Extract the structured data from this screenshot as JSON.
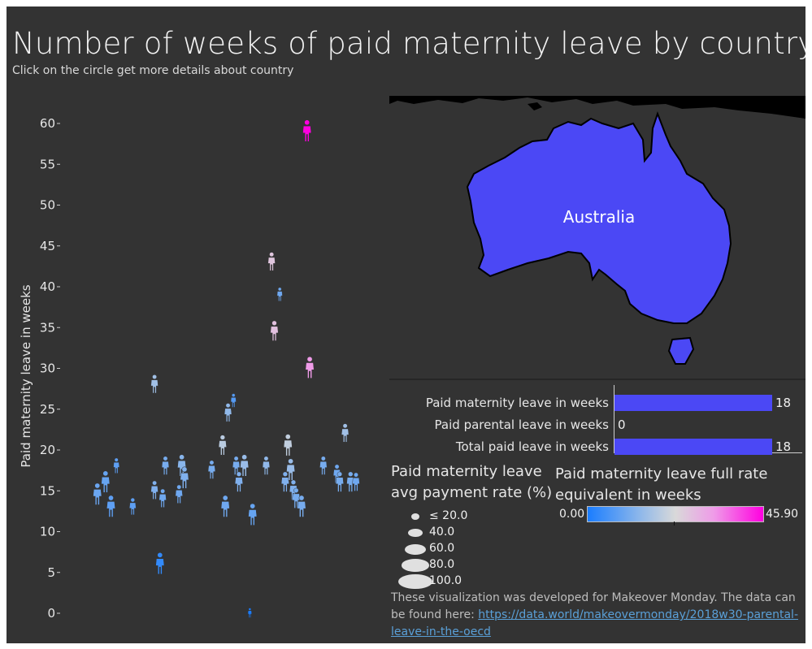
{
  "header": {
    "title": "Number of weeks of paid maternity leave by country",
    "subtitle": "Click on the circle get more details about country"
  },
  "colors": {
    "background": "#333333",
    "ramp_low": "#1a7dff",
    "ramp_mid": "#d9d9d9",
    "ramp_high": "#ff00e0",
    "country_fill": "#4b48f5",
    "bar_fill": "#4b48f5"
  },
  "chart_data": {
    "type": "scatter",
    "marker": "person-icon",
    "ylabel": "Paid maternity leave in weeks",
    "ylim": [
      0,
      60
    ],
    "yticks": [
      "60",
      "55",
      "50",
      "45",
      "40",
      "35",
      "30",
      "25",
      "20",
      "15",
      "10",
      "5",
      "0"
    ],
    "points": [
      {
        "x": 0.05,
        "y": 14.5,
        "size": 80,
        "fte": 9.5
      },
      {
        "x": 0.08,
        "y": 16.0,
        "size": 80,
        "fte": 9.0
      },
      {
        "x": 0.1,
        "y": 13.0,
        "size": 80,
        "fte": 8.0
      },
      {
        "x": 0.12,
        "y": 18.0,
        "size": 40,
        "fte": 8.0
      },
      {
        "x": 0.18,
        "y": 13.0,
        "size": 50,
        "fte": 8.0
      },
      {
        "x": 0.26,
        "y": 28.0,
        "size": 60,
        "fte": 16.0
      },
      {
        "x": 0.26,
        "y": 15.0,
        "size": 60,
        "fte": 12.0
      },
      {
        "x": 0.28,
        "y": 6.0,
        "size": 80,
        "fte": 3.0
      },
      {
        "x": 0.29,
        "y": 14.0,
        "size": 60,
        "fte": 10.0
      },
      {
        "x": 0.3,
        "y": 18.0,
        "size": 60,
        "fte": 11.0
      },
      {
        "x": 0.35,
        "y": 14.5,
        "size": 60,
        "fte": 10.0
      },
      {
        "x": 0.36,
        "y": 18.0,
        "size": 80,
        "fte": 13.0
      },
      {
        "x": 0.37,
        "y": 16.5,
        "size": 80,
        "fte": 12.0
      },
      {
        "x": 0.47,
        "y": 17.5,
        "size": 60,
        "fte": 11.0
      },
      {
        "x": 0.51,
        "y": 20.5,
        "size": 70,
        "fte": 19.0
      },
      {
        "x": 0.52,
        "y": 13.0,
        "size": 80,
        "fte": 10.0
      },
      {
        "x": 0.53,
        "y": 24.5,
        "size": 60,
        "fte": 14.0
      },
      {
        "x": 0.55,
        "y": 26.0,
        "size": 30,
        "fte": 7.0
      },
      {
        "x": 0.56,
        "y": 18.0,
        "size": 60,
        "fte": 11.0
      },
      {
        "x": 0.57,
        "y": 16.0,
        "size": 70,
        "fte": 12.0
      },
      {
        "x": 0.59,
        "y": 18.0,
        "size": 80,
        "fte": 15.0
      },
      {
        "x": 0.61,
        "y": 0.0,
        "size": 5,
        "fte": 0.0
      },
      {
        "x": 0.62,
        "y": 12.0,
        "size": 80,
        "fte": 9.0
      },
      {
        "x": 0.67,
        "y": 18.0,
        "size": 60,
        "fte": 14.0
      },
      {
        "x": 0.69,
        "y": 43.0,
        "size": 60,
        "fte": 26.0
      },
      {
        "x": 0.7,
        "y": 34.5,
        "size": 70,
        "fte": 27.0
      },
      {
        "x": 0.72,
        "y": 39.0,
        "size": 30,
        "fte": 10.0
      },
      {
        "x": 0.74,
        "y": 16.0,
        "size": 70,
        "fte": 12.0
      },
      {
        "x": 0.75,
        "y": 20.5,
        "size": 80,
        "fte": 20.0
      },
      {
        "x": 0.76,
        "y": 17.5,
        "size": 80,
        "fte": 15.0
      },
      {
        "x": 0.77,
        "y": 15.0,
        "size": 70,
        "fte": 12.0
      },
      {
        "x": 0.78,
        "y": 14.0,
        "size": 70,
        "fte": 11.0
      },
      {
        "x": 0.8,
        "y": 13.0,
        "size": 80,
        "fte": 11.0
      },
      {
        "x": 0.82,
        "y": 59.0,
        "size": 80,
        "fte": 45.9
      },
      {
        "x": 0.83,
        "y": 30.0,
        "size": 80,
        "fte": 33.0
      },
      {
        "x": 0.88,
        "y": 18.0,
        "size": 60,
        "fte": 11.0
      },
      {
        "x": 0.93,
        "y": 17.0,
        "size": 60,
        "fte": 10.0
      },
      {
        "x": 0.94,
        "y": 16.0,
        "size": 70,
        "fte": 11.0
      },
      {
        "x": 0.96,
        "y": 22.0,
        "size": 60,
        "fte": 16.0
      },
      {
        "x": 0.98,
        "y": 16.0,
        "size": 70,
        "fte": 11.0
      },
      {
        "x": 1.0,
        "y": 16.0,
        "size": 60,
        "fte": 10.0
      }
    ]
  },
  "map": {
    "country_label": "Australia"
  },
  "detail_bars": {
    "max": 18,
    "rows": [
      {
        "label": "Paid maternity leave in weeks",
        "value": 18,
        "value_label": "18"
      },
      {
        "label": "Paid parental leave in weeks",
        "value": 0,
        "value_label": "0"
      },
      {
        "label": "Total paid leave in weeks",
        "value": 18,
        "value_label": "18"
      }
    ]
  },
  "size_legend": {
    "title": "Paid maternity leave avg payment rate (%)",
    "items": [
      {
        "label": "≤ 20.0",
        "value": 20
      },
      {
        "label": "40.0",
        "value": 40
      },
      {
        "label": "60.0",
        "value": 60
      },
      {
        "label": "80.0",
        "value": 80
      },
      {
        "label": "100.0",
        "value": 100
      }
    ]
  },
  "color_legend": {
    "title": "Paid maternity leave full rate equivalent in weeks",
    "min_label": "0.00",
    "max_label": "45.90",
    "min": 0,
    "max": 45.9
  },
  "footer": {
    "text": "These visualization was developed for Makeover Monday. The data can be found here: ",
    "link": "https://data.world/makeovermonday/2018w30-parental-leave-in-the-oecd"
  }
}
